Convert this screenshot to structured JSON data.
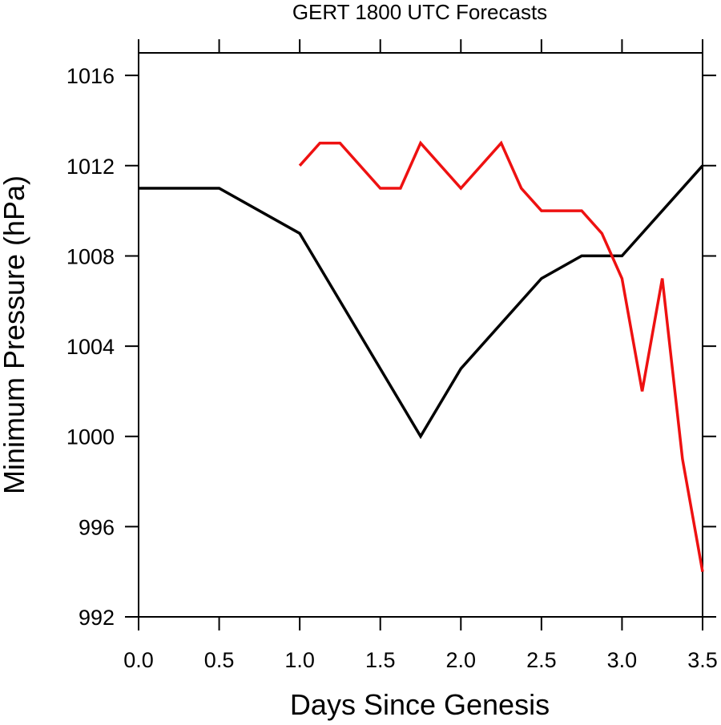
{
  "chart_data": {
    "type": "line",
    "title": "GERT 1800 UTC Forecasts",
    "xlabel": "Days Since Genesis",
    "ylabel": "Minimum Pressure (hPa)",
    "xlim": [
      0.0,
      3.5
    ],
    "ylim": [
      992,
      1017
    ],
    "x_ticks": [
      "0.0",
      "0.5",
      "1.0",
      "1.5",
      "2.0",
      "2.5",
      "3.0",
      "3.5"
    ],
    "y_ticks": [
      "992",
      "996",
      "1000",
      "1004",
      "1008",
      "1012",
      "1016"
    ],
    "grid": false,
    "legend": "none",
    "series": [
      {
        "color": "#000000",
        "x": [
          0.0,
          0.5,
          1.0,
          1.75,
          2.0,
          2.5,
          2.75,
          3.0,
          3.5
        ],
        "y": [
          1011,
          1011,
          1009,
          1000,
          1003,
          1007,
          1008,
          1008,
          1012
        ]
      },
      {
        "color": "#ee1111",
        "x": [
          1.0,
          1.125,
          1.25,
          1.5,
          1.625,
          1.75,
          2.0,
          2.25,
          2.375,
          2.5,
          2.75,
          2.875,
          3.0,
          3.125,
          3.25,
          3.375,
          3.5
        ],
        "y": [
          1012,
          1013,
          1013,
          1011,
          1011,
          1013,
          1011,
          1013,
          1011,
          1010,
          1010,
          1009,
          1007,
          1002,
          1007,
          999,
          994
        ]
      }
    ]
  }
}
